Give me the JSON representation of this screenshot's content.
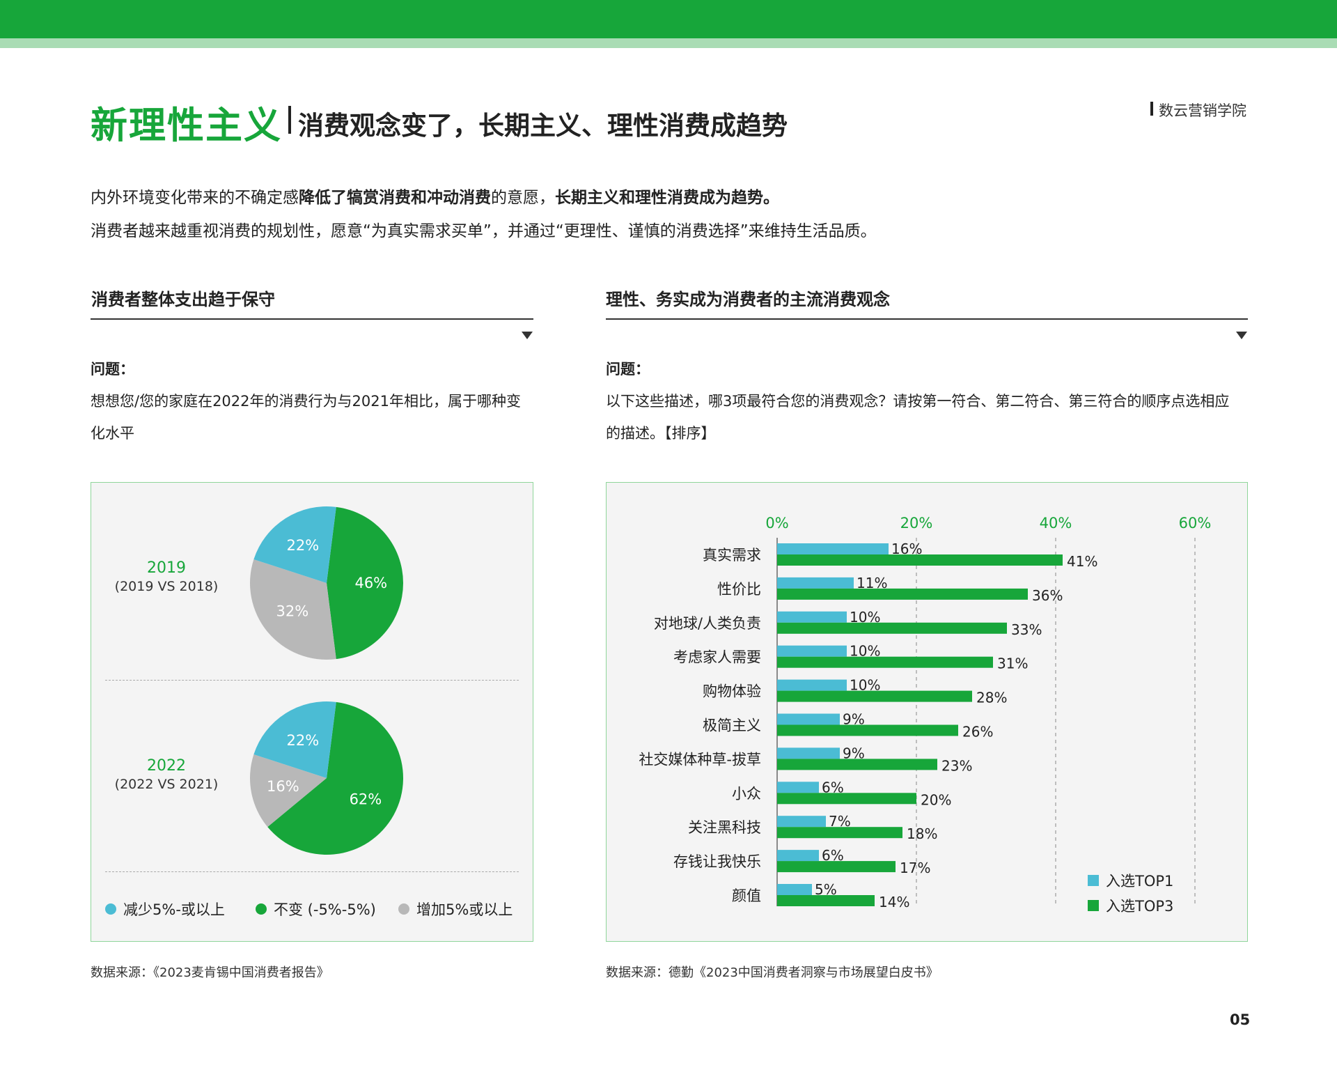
{
  "header": {
    "title_main": "新理性主义",
    "title_sub": "消费观念变了，长期主义、理性消费成趋势",
    "brand": "数云营销学院"
  },
  "intro": {
    "line1_a": "内外环境变化带来的不确定感",
    "line1_b": "降低了犒赏消费和冲动消费",
    "line1_c": "的意愿，",
    "line1_d": "长期主义和理性消费成为趋势。",
    "line2": "消费者越来越重视消费的规划性，愿意“为真实需求买单”，并通过“更理性、谨慎的消费选择”来维持生活品质。"
  },
  "left": {
    "section_title": "消费者整体支出趋于保守",
    "q_label": "问题：",
    "q_line1": "想想您/您的家庭在2022年的消费行为与2021年相比，属于哪种变",
    "q_line2": "化水平",
    "source": "数据来源：《2023麦肯锡中国消费者报告》"
  },
  "right": {
    "section_title": "理性、务实成为消费者的主流消费观念",
    "q_label": "问题：",
    "q_line1": "以下这些描述，哪3项最符合您的消费观念？请按第一符合、第二符合、第三符合的顺序点选相应",
    "q_line2": "的描述。【排序】",
    "source": "数据来源：德勤《2023中国消费者洞察与市场展望白皮书》"
  },
  "page_number": "05",
  "colors": {
    "brand_green": "#17a63a",
    "light_green": "#a9dcb4",
    "cyan": "#4bbcd4",
    "gray": "#b8b8b8"
  },
  "chart_data": [
    {
      "type": "pie",
      "title": "2019",
      "subtitle": "(2019 VS 2018)",
      "series": [
        {
          "name": "减少5%-或以上",
          "value": 22,
          "label": "22%",
          "color": "#4bbcd4"
        },
        {
          "name": "不变 (-5%-5%)",
          "value": 46,
          "label": "46%",
          "color": "#17a63a"
        },
        {
          "name": "增加5%或以上",
          "value": 32,
          "label": "32%",
          "color": "#b8b8b8"
        }
      ]
    },
    {
      "type": "pie",
      "title": "2022",
      "subtitle": "(2022 VS 2021)",
      "series": [
        {
          "name": "减少5%-或以上",
          "value": 22,
          "label": "22%",
          "color": "#4bbcd4"
        },
        {
          "name": "不变 (-5%-5%)",
          "value": 62,
          "label": "62%",
          "color": "#17a63a"
        },
        {
          "name": "增加5%或以上",
          "value": 16,
          "label": "16%",
          "color": "#b8b8b8"
        }
      ],
      "legend": [
        "减少5%-或以上",
        "不变 (-5%-5%)",
        "增加5%或以上"
      ],
      "legend_position": "bottom"
    },
    {
      "type": "bar",
      "orientation": "horizontal",
      "categories": [
        "真实需求",
        "性价比",
        "对地球/人类负责",
        "考虑家人需要",
        "购物体验",
        "极简主义",
        "社交媒体种草-拔草",
        "小众",
        "关注黑科技",
        "存钱让我快乐",
        "颜值"
      ],
      "series": [
        {
          "name": "入选TOP1",
          "color": "#4bbcd4",
          "values": [
            16,
            11,
            10,
            10,
            10,
            9,
            9,
            6,
            7,
            6,
            5
          ]
        },
        {
          "name": "入选TOP3",
          "color": "#17a63a",
          "values": [
            41,
            36,
            33,
            31,
            28,
            26,
            23,
            20,
            18,
            17,
            14
          ]
        }
      ],
      "xlim": [
        0,
        60
      ],
      "ticks": [
        "0%",
        "20%",
        "40%",
        "60%"
      ],
      "grid": true,
      "legend_position": "bottom-right"
    }
  ]
}
